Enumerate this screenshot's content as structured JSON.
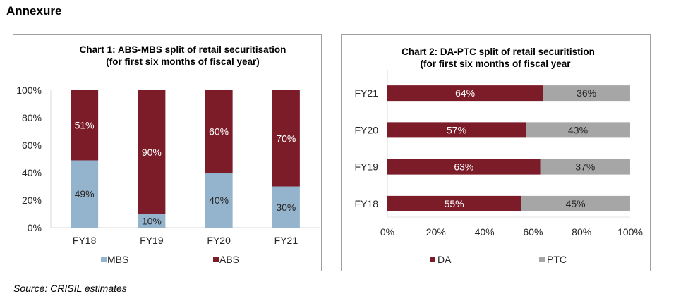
{
  "page": {
    "heading": "Annexure",
    "source": "Source: CRISIL estimates"
  },
  "colors": {
    "maroon": "#7b1c28",
    "light_blue": "#94b3cd",
    "gray": "#a6a6a6"
  },
  "chart_data": [
    {
      "id": "chart1",
      "type": "bar",
      "orientation": "vertical",
      "stacked": "percent",
      "title": "Chart 1: ABS-MBS split of retail securitisation",
      "subtitle": "(for first six months of fiscal year)",
      "categories": [
        "FY18",
        "FY19",
        "FY20",
        "FY21"
      ],
      "series": [
        {
          "name": "MBS",
          "color": "#94b3cd",
          "label_color": "#262626",
          "values": [
            49,
            10,
            40,
            30
          ]
        },
        {
          "name": "ABS",
          "color": "#7b1c28",
          "label_color": "#ffffff",
          "values": [
            51,
            90,
            60,
            70
          ]
        }
      ],
      "data_labels": {
        "MBS": [
          "49%",
          "10%",
          "40%",
          "30%"
        ],
        "ABS": [
          "51%",
          "90%",
          "60%",
          "70%"
        ]
      },
      "yticks": [
        "0%",
        "20%",
        "40%",
        "60%",
        "80%",
        "100%"
      ],
      "ylim": [
        0,
        100
      ],
      "xlabel": "",
      "ylabel": "",
      "grid": false,
      "legend": {
        "position": "bottom",
        "entries": [
          "MBS",
          "ABS"
        ]
      }
    },
    {
      "id": "chart2",
      "type": "bar",
      "orientation": "horizontal",
      "stacked": "percent",
      "title": "Chart 2: DA-PTC split of retail securitistion",
      "subtitle": "(for first six months of fiscal year",
      "categories": [
        "FY21",
        "FY20",
        "FY19",
        "FY18"
      ],
      "series": [
        {
          "name": "DA",
          "color": "#7b1c28",
          "label_color": "#ffffff",
          "values": [
            64,
            57,
            63,
            55
          ]
        },
        {
          "name": "PTC",
          "color": "#a6a6a6",
          "label_color": "#262626",
          "values": [
            36,
            43,
            37,
            45
          ]
        }
      ],
      "data_labels": {
        "DA": [
          "64%",
          "57%",
          "63%",
          "55%"
        ],
        "PTC": [
          "36%",
          "43%",
          "37%",
          "45%"
        ]
      },
      "xticks": [
        "0%",
        "20%",
        "40%",
        "60%",
        "80%",
        "100%"
      ],
      "xlim": [
        0,
        100
      ],
      "xlabel": "",
      "ylabel": "",
      "grid": false,
      "legend": {
        "position": "bottom",
        "entries": [
          "DA",
          "PTC"
        ]
      }
    }
  ]
}
